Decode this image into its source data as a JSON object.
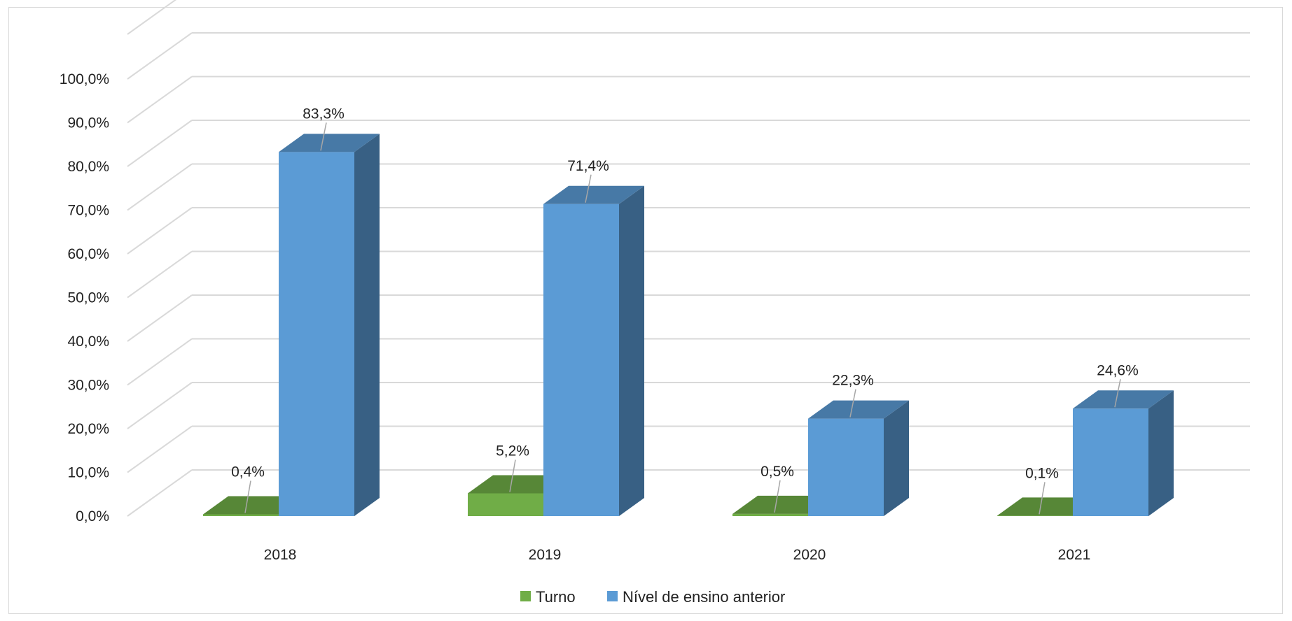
{
  "chart_data": {
    "type": "bar",
    "title": "",
    "xlabel": "",
    "ylabel": "",
    "categories": [
      "2018",
      "2019",
      "2020",
      "2021"
    ],
    "series": [
      {
        "name": "Turno",
        "values": [
          0.4,
          5.2,
          0.5,
          0.1
        ],
        "labels": [
          "0,4%",
          "5,2%",
          "0,5%",
          "0,1%"
        ],
        "color": "#70ad47"
      },
      {
        "name": "Nível de ensino anterior",
        "values": [
          83.3,
          71.4,
          22.3,
          24.6
        ],
        "labels": [
          "83,3%",
          "71,4%",
          "22,3%",
          "24,6%"
        ],
        "color": "#5b9bd5"
      }
    ],
    "ylim": [
      0,
      100
    ],
    "yticks": [
      0,
      10,
      20,
      30,
      40,
      50,
      60,
      70,
      80,
      90,
      100
    ],
    "ytick_labels": [
      "0,0%",
      "10,0%",
      "20,0%",
      "30,0%",
      "40,0%",
      "50,0%",
      "60,0%",
      "70,0%",
      "80,0%",
      "90,0%",
      "100,0%"
    ],
    "grid": true,
    "style": "3d",
    "legend_position": "bottom"
  }
}
